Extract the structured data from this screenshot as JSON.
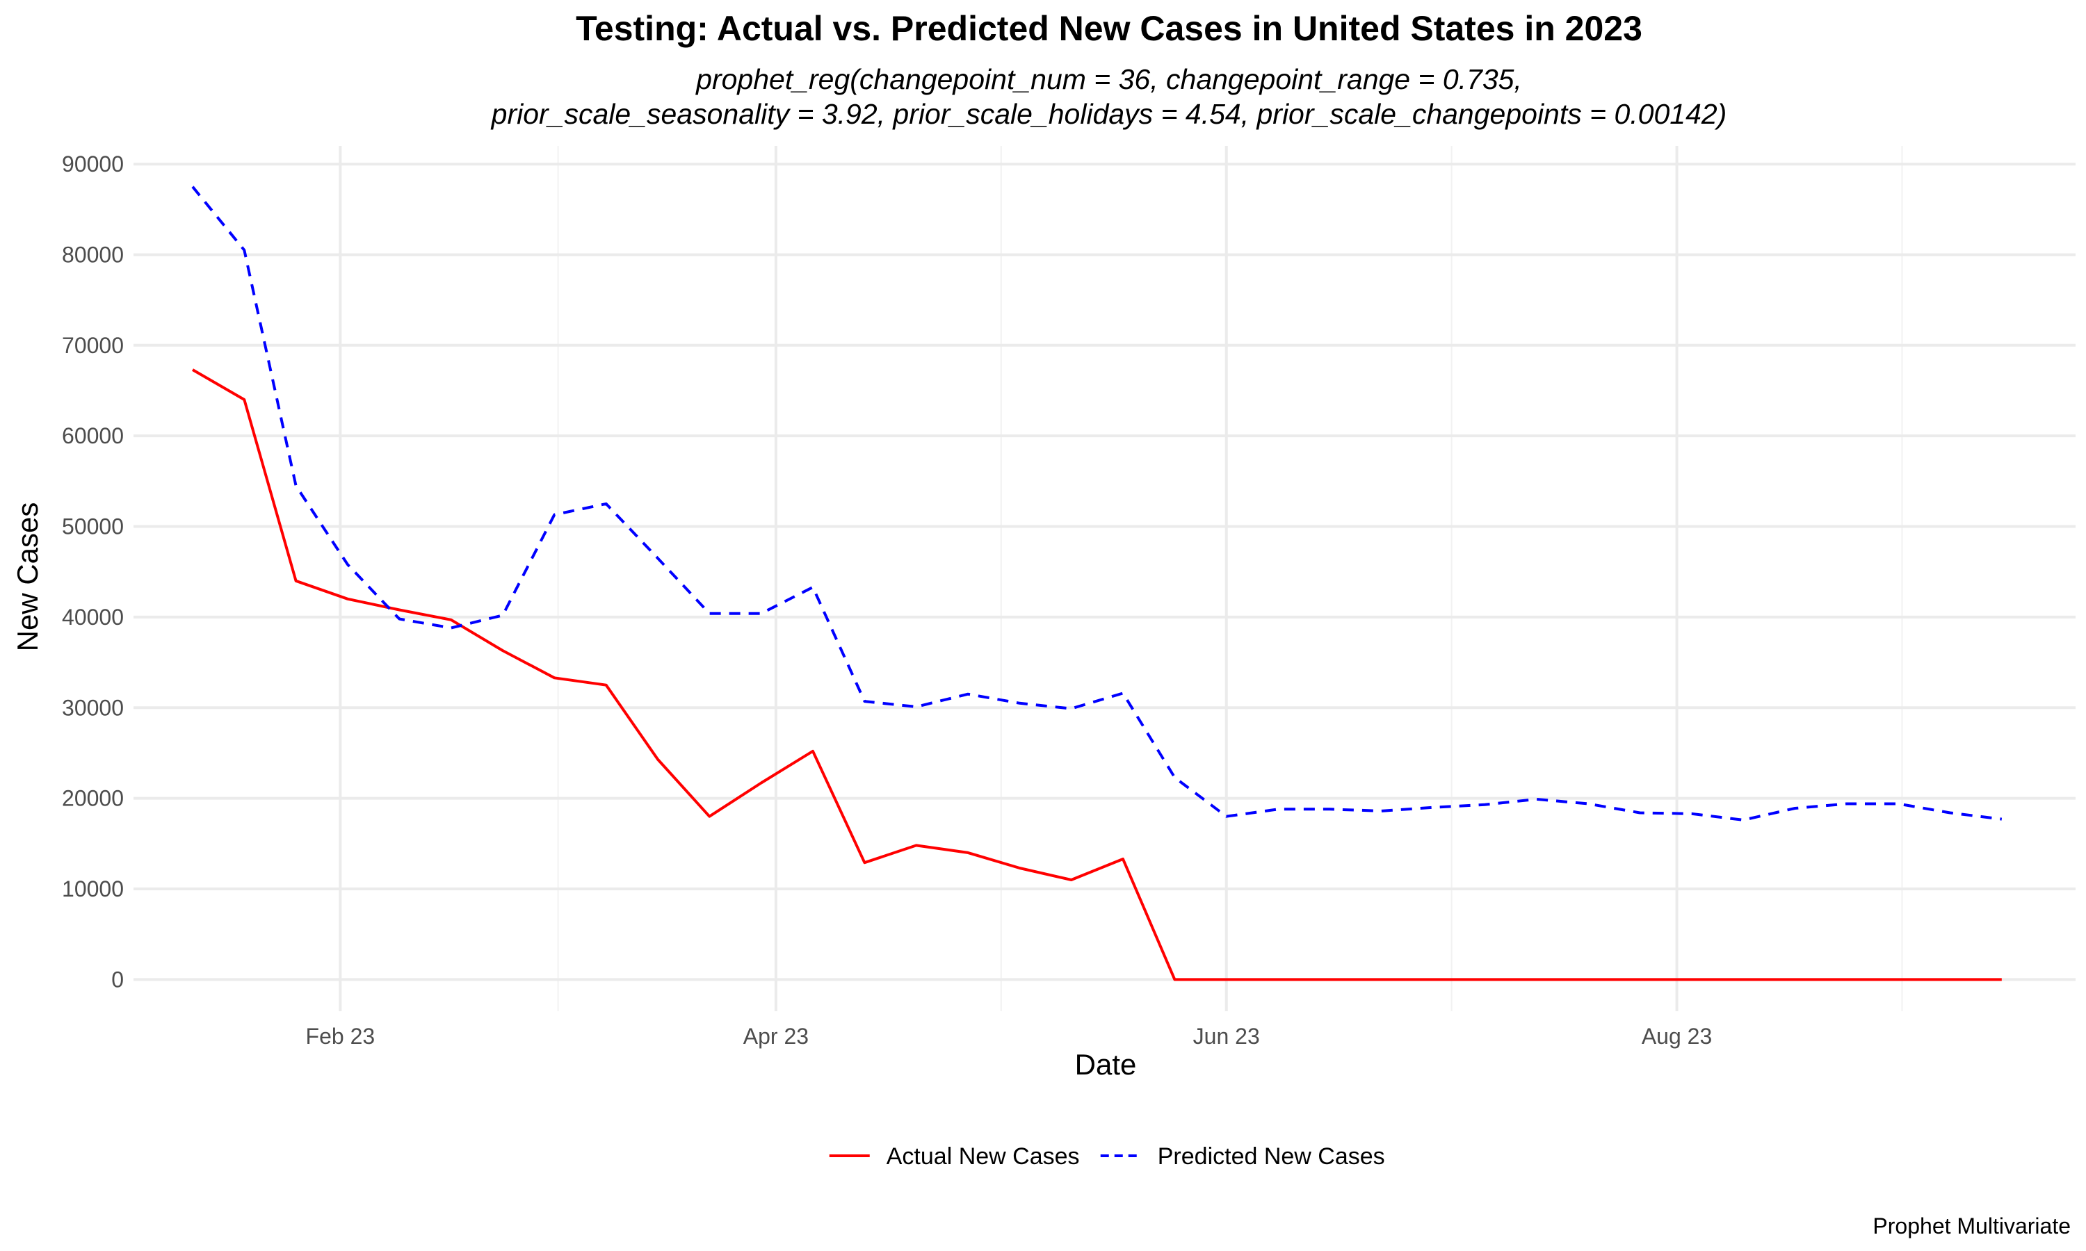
{
  "chart_data": {
    "type": "line",
    "title": "Testing: Actual vs. Predicted New Cases in United States in 2023",
    "subtitle_lines": [
      "prophet_reg(changepoint_num = 36, changepoint_range = 0.735,",
      "prior_scale_seasonality = 3.92, prior_scale_holidays = 4.54, prior_scale_changepoints = 0.00142)"
    ],
    "xlabel": "Date",
    "ylabel": "New Cases",
    "caption": "Prophet Multivariate",
    "ylim": [
      -3500,
      92000
    ],
    "xlim": [
      "2023-01-04",
      "2023-09-24"
    ],
    "y_ticks": [
      0,
      10000,
      20000,
      30000,
      40000,
      50000,
      60000,
      70000,
      80000,
      90000
    ],
    "x_ticks": [
      {
        "date": "2023-02-01",
        "label": "Feb 23"
      },
      {
        "date": "2023-04-01",
        "label": "Apr 23"
      },
      {
        "date": "2023-06-01",
        "label": "Jun 23"
      },
      {
        "date": "2023-08-01",
        "label": "Aug 23"
      }
    ],
    "grid": true,
    "legend_position": "bottom",
    "series": [
      {
        "name": "Actual New Cases",
        "color": "#ff0000",
        "dash": "solid",
        "x": [
          "2023-01-12",
          "2023-01-19",
          "2023-01-26",
          "2023-02-02",
          "2023-02-09",
          "2023-02-16",
          "2023-02-23",
          "2023-03-02",
          "2023-03-09",
          "2023-03-16",
          "2023-03-23",
          "2023-03-30",
          "2023-04-06",
          "2023-04-13",
          "2023-04-20",
          "2023-04-27",
          "2023-05-04",
          "2023-05-11",
          "2023-05-18",
          "2023-05-25",
          "2023-06-01",
          "2023-06-08",
          "2023-06-15",
          "2023-06-22",
          "2023-06-29",
          "2023-07-06",
          "2023-07-13",
          "2023-07-20",
          "2023-07-27",
          "2023-08-03",
          "2023-08-10",
          "2023-08-17",
          "2023-08-24",
          "2023-08-31",
          "2023-09-07",
          "2023-09-14"
        ],
        "values": [
          67300,
          64000,
          44000,
          42000,
          40800,
          39700,
          36300,
          33300,
          32500,
          24300,
          18000,
          21700,
          25200,
          12900,
          14800,
          14000,
          12300,
          11000,
          13300,
          0,
          0,
          0,
          0,
          0,
          0,
          0,
          0,
          0,
          0,
          0,
          0,
          0,
          0,
          0,
          0,
          0
        ]
      },
      {
        "name": "Predicted New Cases",
        "color": "#0000ff",
        "dash": "dashed",
        "x": [
          "2023-01-12",
          "2023-01-19",
          "2023-01-26",
          "2023-02-02",
          "2023-02-09",
          "2023-02-16",
          "2023-02-23",
          "2023-03-02",
          "2023-03-09",
          "2023-03-16",
          "2023-03-23",
          "2023-03-30",
          "2023-04-06",
          "2023-04-13",
          "2023-04-20",
          "2023-04-27",
          "2023-05-04",
          "2023-05-11",
          "2023-05-18",
          "2023-05-25",
          "2023-06-01",
          "2023-06-08",
          "2023-06-15",
          "2023-06-22",
          "2023-06-29",
          "2023-07-06",
          "2023-07-13",
          "2023-07-20",
          "2023-07-27",
          "2023-08-03",
          "2023-08-10",
          "2023-08-17",
          "2023-08-24",
          "2023-08-31",
          "2023-09-07",
          "2023-09-14"
        ],
        "values": [
          87500,
          80500,
          54500,
          45800,
          39800,
          38800,
          40200,
          51300,
          52500,
          46500,
          40400,
          40400,
          43300,
          30700,
          30100,
          31500,
          30500,
          29900,
          31600,
          22300,
          18000,
          18800,
          18800,
          18600,
          19000,
          19300,
          19900,
          19400,
          18400,
          18300,
          17600,
          18900,
          19400,
          19400,
          18400,
          17700
        ]
      }
    ]
  }
}
